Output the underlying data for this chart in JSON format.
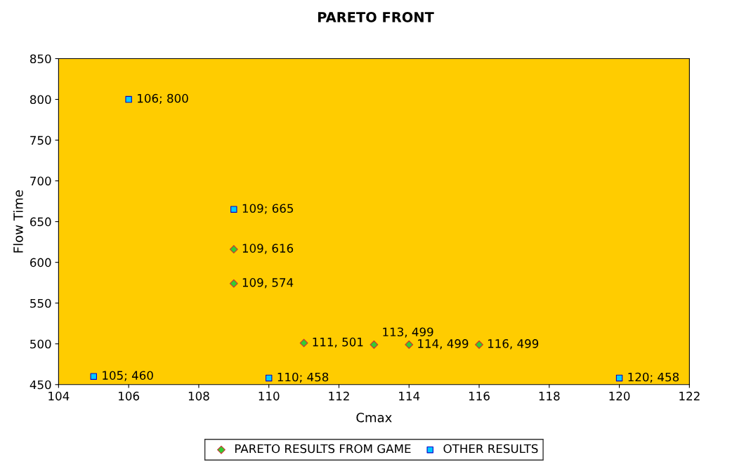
{
  "chart_data": {
    "type": "scatter",
    "title": "PARETO FRONT",
    "xlabel": "Cmax",
    "ylabel": "Flow Time",
    "xlim": [
      104,
      122
    ],
    "xticks": [
      104,
      106,
      108,
      110,
      112,
      114,
      116,
      118,
      120,
      122
    ],
    "ylim": [
      450,
      850
    ],
    "yticks": [
      450,
      500,
      550,
      600,
      650,
      700,
      750,
      800,
      850
    ],
    "grid": false,
    "legend": "bottom",
    "series": [
      {
        "name": "PARETO RESULTS FROM GAME",
        "color": "#33cc33",
        "marker": "diamond",
        "x": [
          109,
          109,
          111,
          113,
          114,
          116
        ],
        "values": [
          616,
          574,
          501,
          499,
          499,
          499
        ],
        "value_labels": [
          "109, 616",
          "109, 574",
          "111, 501",
          "113, 499",
          "114, 499",
          "116, 499"
        ]
      },
      {
        "name": "OTHER RESULTS",
        "color": "#00ccff",
        "marker": "square",
        "x": [
          106,
          109,
          105,
          110,
          120
        ],
        "values": [
          800,
          665,
          460,
          458,
          458
        ],
        "value_labels": [
          "106; 800",
          "109; 665",
          "105; 460",
          "110; 458",
          "120; 458"
        ]
      }
    ]
  }
}
